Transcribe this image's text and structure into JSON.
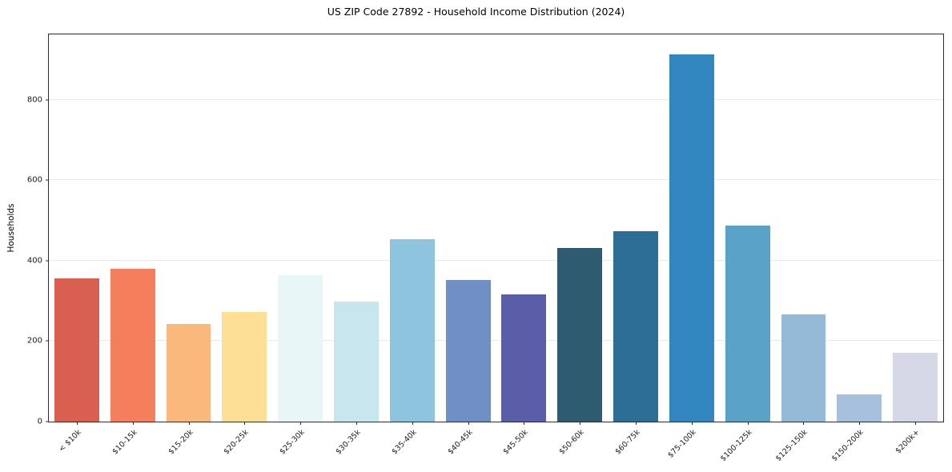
{
  "chart_data": {
    "type": "bar",
    "title": "US ZIP Code 27892 - Household Income Distribution (2024)",
    "ylabel": "Households",
    "xlabel": "",
    "categories": [
      "< $10k",
      "$10-15k",
      "$15-20k",
      "$20-25k",
      "$25-30k",
      "$30-35k",
      "$35-40k",
      "$40-45k",
      "$45-50k",
      "$50-60k",
      "$60-75k",
      "$75-100k",
      "$100-125k",
      "$125-150k",
      "$150-200k",
      "$200k+"
    ],
    "values": [
      356,
      380,
      243,
      273,
      363,
      299,
      454,
      352,
      317,
      432,
      473,
      913,
      487,
      267,
      67,
      171
    ],
    "bar_colors": [
      "#d95f50",
      "#f57f5d",
      "#fbb87c",
      "#fde096",
      "#e9f6f8",
      "#c7e6ee",
      "#8ec4dd",
      "#6f8fc5",
      "#5a5ea9",
      "#2f5b70",
      "#2c6e96",
      "#3387c0",
      "#5aa2c8",
      "#95bad8",
      "#a6c0dd",
      "#d6d8e7"
    ],
    "ylim": [
      0,
      962
    ],
    "yticks": [
      0,
      200,
      400,
      600,
      800
    ],
    "grid": "horizontal",
    "legend": "none",
    "background": "#ffffff"
  }
}
